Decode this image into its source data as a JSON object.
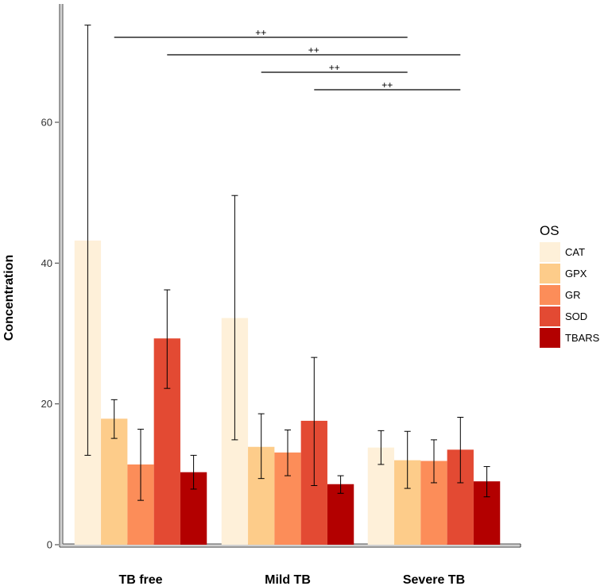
{
  "chart_data": {
    "type": "bar",
    "title": "",
    "xlabel": "",
    "ylabel": "Concentration",
    "ylim": [
      0,
      75
    ],
    "yticks": [
      0,
      20,
      40,
      60
    ],
    "grid": false,
    "legend_title": "OS",
    "legend_position": "right",
    "categories": [
      "TB free",
      "Mild TB",
      "Severe TB"
    ],
    "series": [
      {
        "name": "CAT",
        "color": "#FEF0D9",
        "values": [
          43.2,
          32.2,
          13.8
        ],
        "err_low": [
          12.7,
          14.9,
          11.4
        ],
        "err_high": [
          73.8,
          49.6,
          16.2
        ]
      },
      {
        "name": "GPX",
        "color": "#FDCC8A",
        "values": [
          17.9,
          13.9,
          12.0
        ],
        "err_low": [
          15.1,
          9.4,
          8.0
        ],
        "err_high": [
          20.6,
          18.6,
          16.1
        ]
      },
      {
        "name": "GR",
        "color": "#FC8D59",
        "values": [
          11.4,
          13.1,
          11.9
        ],
        "err_low": [
          6.3,
          9.8,
          8.8
        ],
        "err_high": [
          16.4,
          16.3,
          14.9
        ]
      },
      {
        "name": "SOD",
        "color": "#E34A33",
        "values": [
          29.3,
          17.6,
          13.5
        ],
        "err_low": [
          22.2,
          8.4,
          8.8
        ],
        "err_high": [
          36.2,
          26.6,
          18.1
        ]
      },
      {
        "name": "TBARS",
        "color": "#B30000",
        "values": [
          10.3,
          8.6,
          9.0
        ],
        "err_low": [
          7.9,
          7.3,
          6.8
        ],
        "err_high": [
          12.7,
          9.8,
          11.1
        ]
      }
    ],
    "significance": [
      {
        "label": "++",
        "from": {
          "category": "TB free",
          "series": "GPX"
        },
        "to": {
          "category": "Severe TB",
          "series": "GPX"
        }
      },
      {
        "label": "++",
        "from": {
          "category": "TB free",
          "series": "SOD"
        },
        "to": {
          "category": "Severe TB",
          "series": "SOD"
        }
      },
      {
        "label": "++",
        "from": {
          "category": "Mild TB",
          "series": "GPX"
        },
        "to": {
          "category": "Severe TB",
          "series": "GPX"
        }
      },
      {
        "label": "++",
        "from": {
          "category": "Mild TB",
          "series": "SOD"
        },
        "to": {
          "category": "Severe TB",
          "series": "SOD"
        }
      }
    ]
  }
}
